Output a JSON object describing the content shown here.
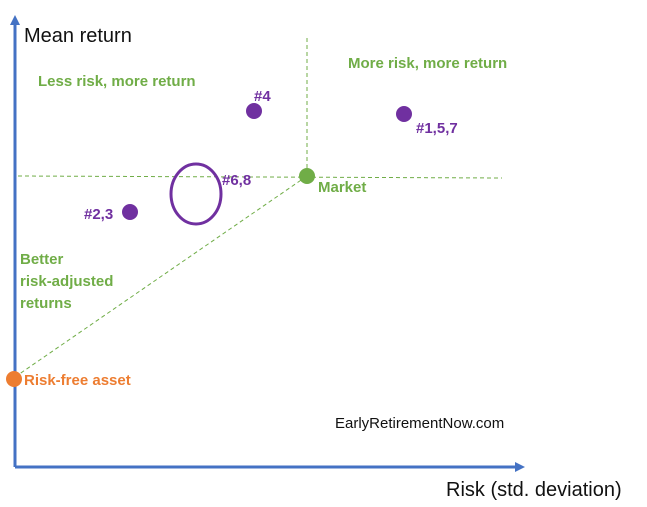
{
  "axes": {
    "y_title": "Mean return",
    "x_title": "Risk (std. deviation)"
  },
  "quadrants": {
    "top_left": "Less risk, more return",
    "top_right": "More risk, more return",
    "better_line1": "Better",
    "better_line2": "risk-adjusted",
    "better_line3": "returns"
  },
  "points": {
    "p4": "#4",
    "p157": "#1,5,7",
    "p68": "#6,8",
    "p23": "#2,3",
    "market": "Market",
    "risk_free": "Risk-free asset"
  },
  "credit": "EarlyRetirementNow.com",
  "colors": {
    "axis": "#4472c4",
    "green": "#70ad47",
    "purple": "#7030a0",
    "orange": "#ed7d31"
  }
}
